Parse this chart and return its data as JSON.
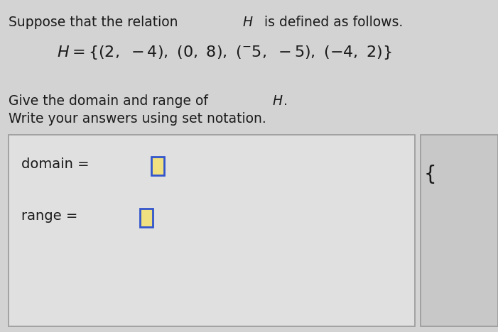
{
  "bg_color": "#d3d3d3",
  "text_color": "#1a1a1a",
  "font_size_body": 13.5,
  "font_size_eq": 16,
  "box_facecolor": "#e0e0e0",
  "box_edgecolor": "#999999",
  "right_box_facecolor": "#c8c8c8",
  "right_box_edgecolor": "#999999",
  "input_border": "#3355cc",
  "input_fill": "#f0e080",
  "line1_normal": "Suppose that the relation ",
  "line1_italic": "H",
  "line1_end": " is defined as follows.",
  "line3_normal": "Give the domain and range of ",
  "line3_italic": "H",
  "line3_period": ".",
  "line4": "Write your answers using set notation.",
  "domain_label": "domain = ",
  "range_label": "range = "
}
